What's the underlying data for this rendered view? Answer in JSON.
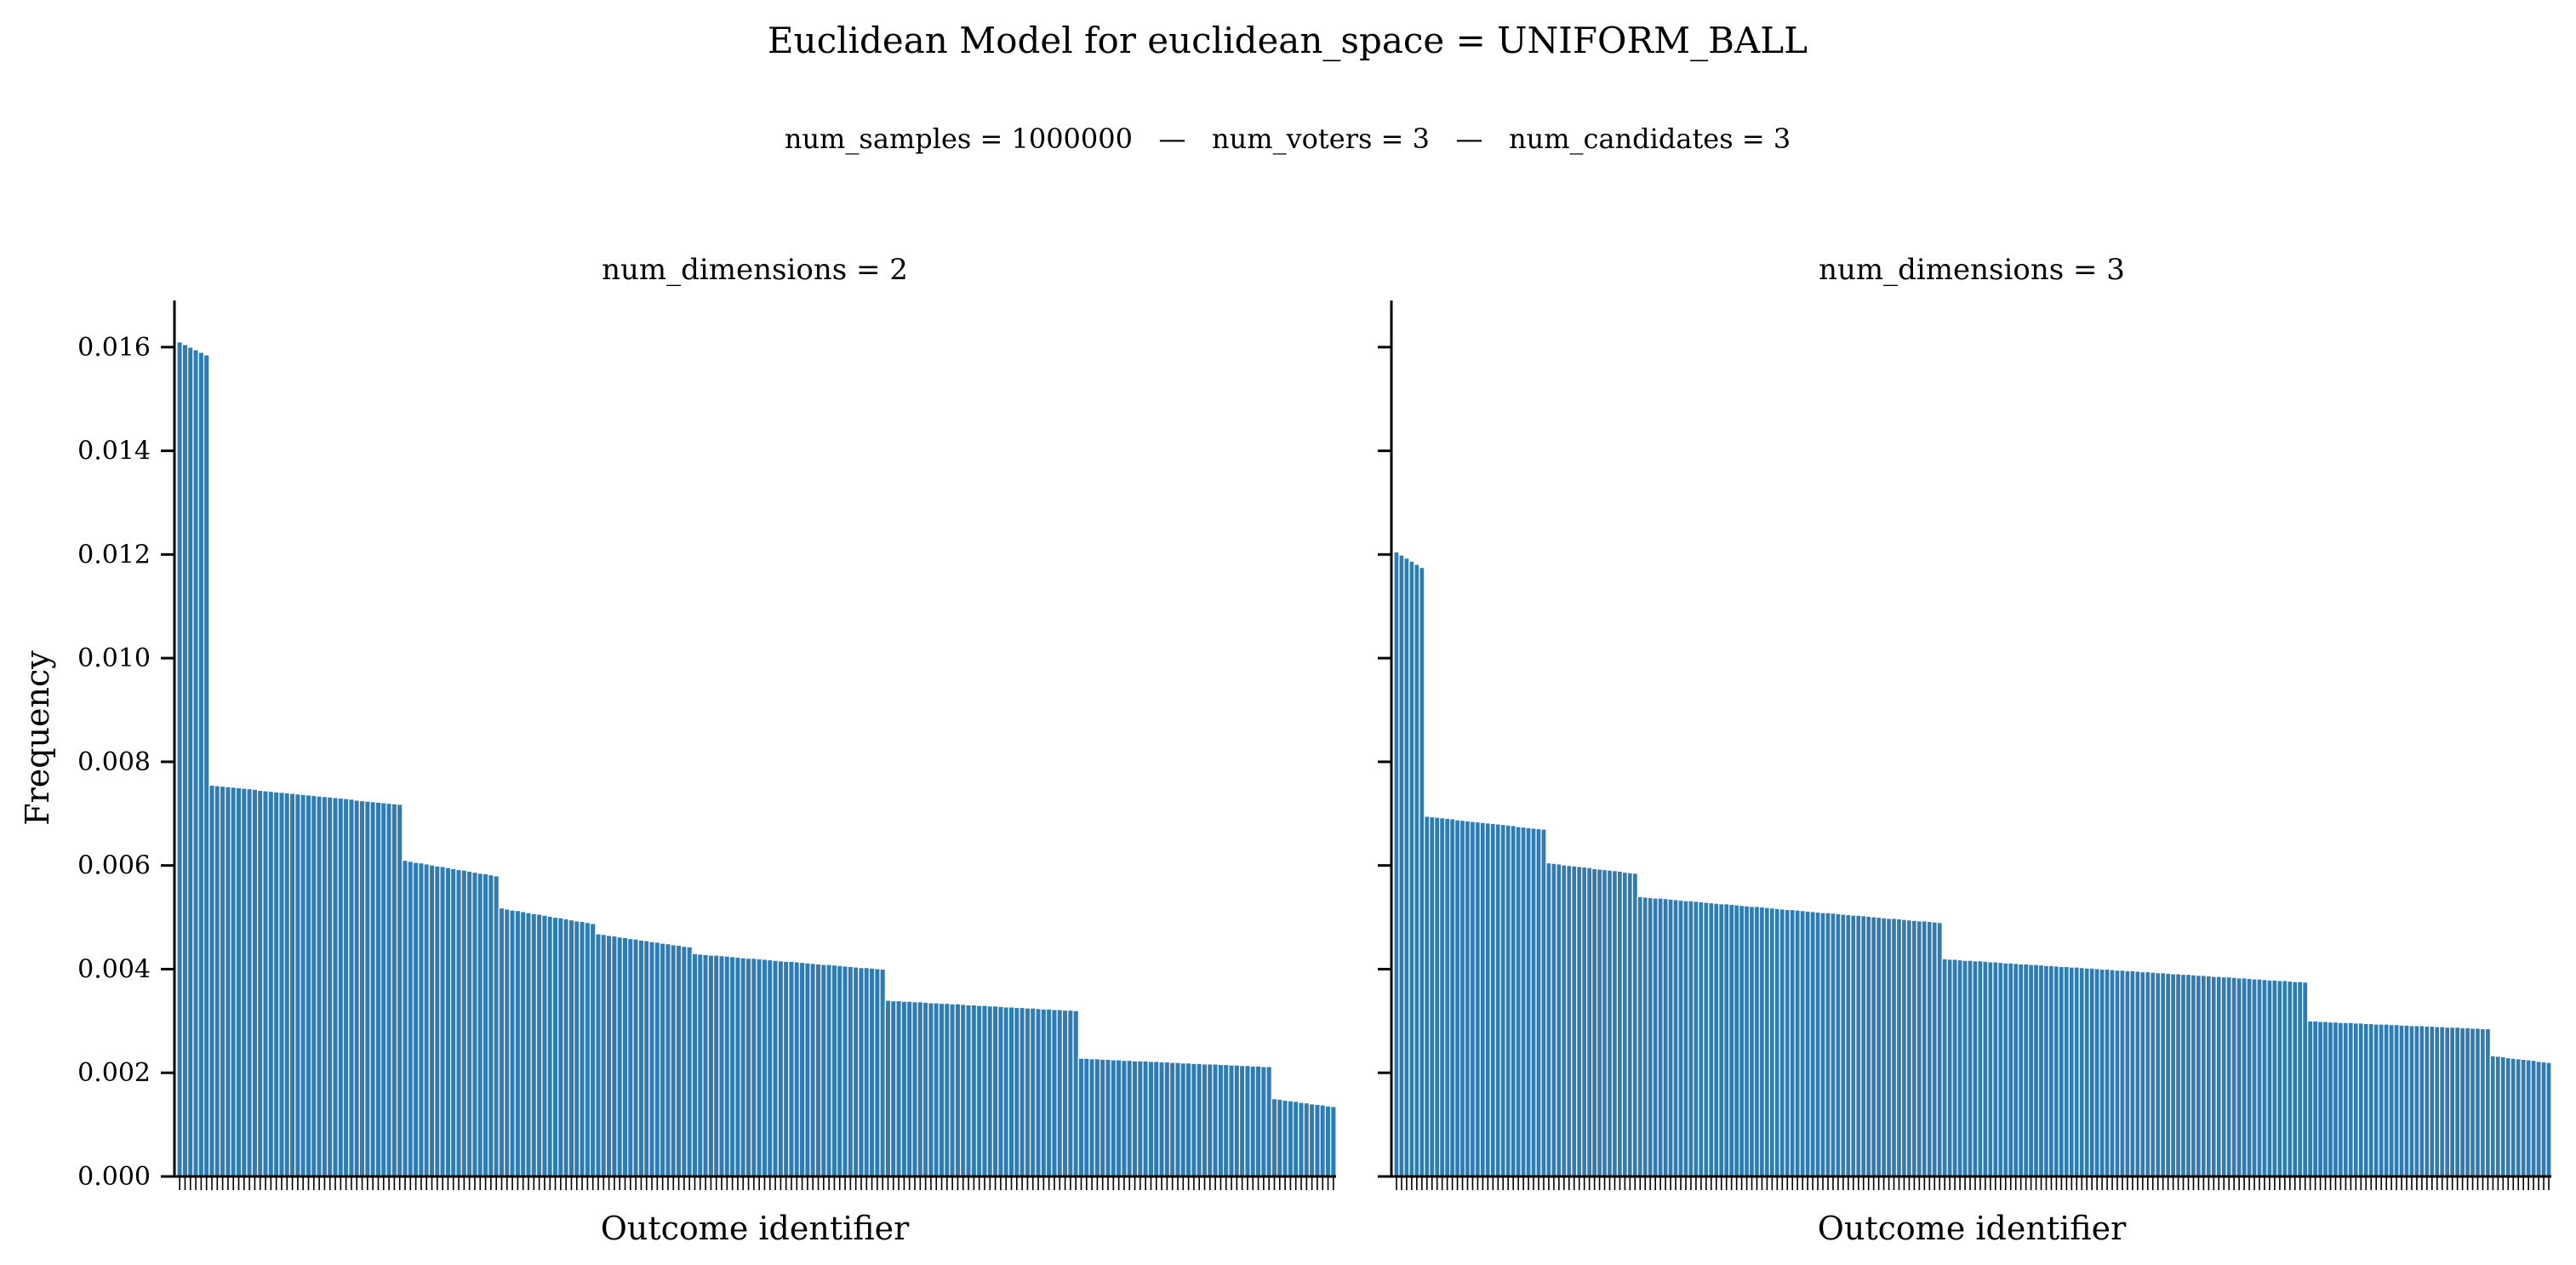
{
  "title": "Euclidean Model for euclidean_space = UNIFORM_BALL",
  "subtitle": "num_samples = 1000000   —   num_voters = 3   —   num_candidates = 3",
  "colors": {
    "bar": "#2f7cb5",
    "bar_edge": "#ffffff",
    "axis": "#000000"
  },
  "chart_data": [
    {
      "type": "bar",
      "title": "num_dimensions = 2",
      "xlabel": "Outcome identifier",
      "ylabel": "Frequency",
      "ylim": [
        0,
        0.0169
      ],
      "yticks": [
        "0.000",
        "0.002",
        "0.004",
        "0.006",
        "0.008",
        "0.010",
        "0.012",
        "0.014",
        "0.016"
      ],
      "xtick_labels": "none",
      "grid": false,
      "plateaus": [
        {
          "count": 6,
          "start": 0.0161,
          "end": 0.01585
        },
        {
          "count": 36,
          "start": 0.00755,
          "end": 0.00718
        },
        {
          "count": 18,
          "start": 0.0061,
          "end": 0.0058
        },
        {
          "count": 18,
          "start": 0.00518,
          "end": 0.00488
        },
        {
          "count": 18,
          "start": 0.00468,
          "end": 0.00443
        },
        {
          "count": 36,
          "start": 0.0043,
          "end": 0.004
        },
        {
          "count": 36,
          "start": 0.0034,
          "end": 0.0032
        },
        {
          "count": 36,
          "start": 0.00228,
          "end": 0.00212
        },
        {
          "count": 12,
          "start": 0.0015,
          "end": 0.00135
        }
      ]
    },
    {
      "type": "bar",
      "title": "num_dimensions = 3",
      "xlabel": "Outcome identifier",
      "ylabel": "",
      "ylim": [
        0,
        0.0169
      ],
      "yticks": [],
      "xtick_labels": "none",
      "grid": false,
      "plateaus": [
        {
          "count": 6,
          "start": 0.01205,
          "end": 0.01175
        },
        {
          "count": 24,
          "start": 0.00695,
          "end": 0.0067
        },
        {
          "count": 18,
          "start": 0.00605,
          "end": 0.00585
        },
        {
          "count": 60,
          "start": 0.0054,
          "end": 0.0049
        },
        {
          "count": 72,
          "start": 0.0042,
          "end": 0.00375
        },
        {
          "count": 36,
          "start": 0.003,
          "end": 0.00285
        },
        {
          "count": 12,
          "start": 0.00233,
          "end": 0.0022
        }
      ]
    }
  ]
}
